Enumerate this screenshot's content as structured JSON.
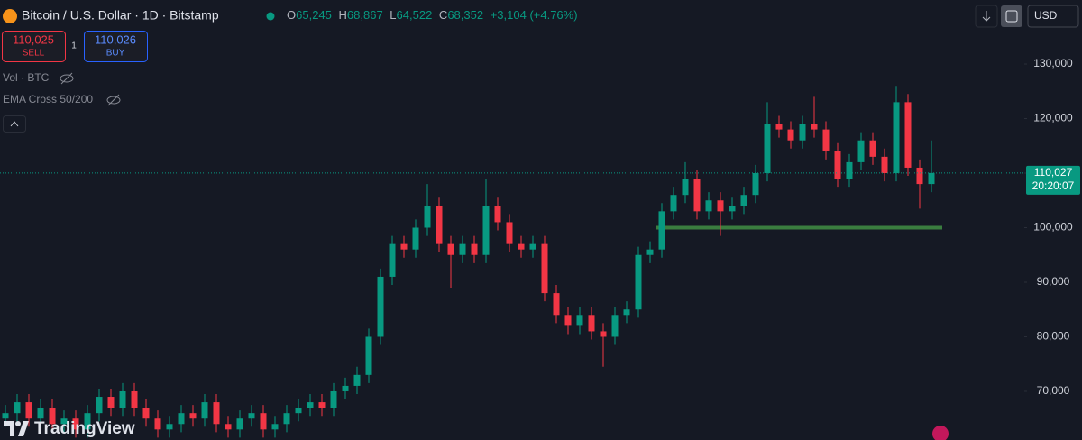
{
  "header": {
    "symbol": "Bitcoin / U.S. Dollar · 1D · Bitstamp",
    "ohlc": [
      {
        "key": "O",
        "value": "65,245"
      },
      {
        "key": "H",
        "value": "68,867"
      },
      {
        "key": "L",
        "value": "64,522"
      },
      {
        "key": "C",
        "value": "68,352"
      }
    ],
    "change": "+3,104 (+4.76%)",
    "currency": "USD"
  },
  "trade": {
    "sell_price": "110,025",
    "sell": "SELL",
    "spread": "1",
    "buy_price": "110,026",
    "buy": "BUY"
  },
  "indicators": [
    "Vol · BTC",
    "EMA Cross 50/200"
  ],
  "logo": "TradingView",
  "chart_data": {
    "type": "candlestick",
    "up_color": "#089981",
    "down_color": "#f23645",
    "ylim": [
      61070,
      141740
    ],
    "yticks": [
      {
        "value": 70000,
        "label": "70,000"
      },
      {
        "value": 80000,
        "label": "80,000"
      },
      {
        "value": 90000,
        "label": "90,000"
      },
      {
        "value": 100000,
        "label": "100,000"
      },
      {
        "value": 110000,
        "label": "110,000"
      },
      {
        "value": 120000,
        "label": "120,000"
      },
      {
        "value": 130000,
        "label": "130,000"
      }
    ],
    "open": [
      65000,
      66000,
      68000,
      65000,
      67000,
      64000,
      65000,
      63000,
      66000,
      69000,
      67000,
      70000,
      67000,
      65000,
      63000,
      64000,
      66000,
      65000,
      68000,
      64000,
      63000,
      65000,
      66000,
      63000,
      64000,
      66000,
      67000,
      68000,
      67000,
      70000,
      71000,
      73000,
      80000,
      91000,
      97000,
      96000,
      100000,
      104000,
      97000,
      95000,
      97000,
      95000,
      104000,
      101000,
      97000,
      96000,
      97000,
      88000,
      84000,
      82000,
      84000,
      81000,
      80000,
      84000,
      85000,
      95000,
      96000,
      103000,
      106000,
      109000,
      103000,
      105000,
      103000,
      104000,
      106000,
      110000,
      119000,
      118000,
      116000,
      119000,
      118000,
      114000,
      109000,
      112000,
      116000,
      113000,
      110000,
      123000,
      111000,
      108000
    ],
    "high": [
      67500,
      69500,
      69500,
      68500,
      68500,
      66500,
      66500,
      67500,
      70500,
      70500,
      71500,
      71500,
      68500,
      66500,
      65500,
      67500,
      67500,
      69500,
      69500,
      65500,
      66500,
      67500,
      67500,
      65500,
      67500,
      68500,
      69500,
      69500,
      71500,
      72500,
      74500,
      81500,
      92500,
      98500,
      98500,
      101500,
      108000,
      105500,
      98500,
      98500,
      98500,
      109000,
      105500,
      102500,
      98500,
      98500,
      98500,
      89500,
      85500,
      85500,
      85500,
      82500,
      85500,
      86500,
      96500,
      97500,
      104500,
      107500,
      112000,
      110500,
      106500,
      106500,
      105500,
      107500,
      111500,
      123000,
      120500,
      119500,
      120500,
      124000,
      119500,
      115500,
      113500,
      117500,
      117500,
      114500,
      126000,
      124500,
      112500,
      116000
    ],
    "low": [
      63500,
      64500,
      63500,
      63500,
      62500,
      62500,
      61500,
      61500,
      64500,
      65500,
      65500,
      65500,
      63500,
      61500,
      61500,
      62500,
      63500,
      63500,
      62500,
      61500,
      61500,
      63500,
      61500,
      61500,
      62500,
      64500,
      65500,
      65500,
      65500,
      68500,
      69500,
      71500,
      78500,
      89500,
      94500,
      94500,
      98500,
      95500,
      89000,
      93500,
      93500,
      93500,
      99500,
      95500,
      94500,
      94500,
      86500,
      82500,
      80500,
      80500,
      79500,
      74500,
      78500,
      82500,
      83500,
      93500,
      94500,
      101500,
      104500,
      101500,
      101500,
      98500,
      101500,
      102500,
      104500,
      108500,
      116500,
      114500,
      114500,
      116500,
      112500,
      107500,
      107500,
      110500,
      111500,
      108500,
      108500,
      109500,
      103500,
      106500
    ],
    "close": [
      66000,
      68000,
      65000,
      67000,
      64000,
      65000,
      63000,
      66000,
      69000,
      67000,
      70000,
      67000,
      65000,
      63000,
      64000,
      66000,
      65000,
      68000,
      64000,
      63000,
      65000,
      66000,
      63000,
      64000,
      66000,
      67000,
      68000,
      67000,
      70000,
      71000,
      73000,
      80000,
      91000,
      97000,
      96000,
      100000,
      104000,
      97000,
      95000,
      97000,
      95000,
      104000,
      101000,
      97000,
      96000,
      97000,
      88000,
      84000,
      82000,
      84000,
      81000,
      80000,
      84000,
      85000,
      95000,
      96000,
      103000,
      106000,
      109000,
      103000,
      105000,
      103000,
      104000,
      106000,
      110000,
      119000,
      118000,
      116000,
      119000,
      118000,
      114000,
      109000,
      112000,
      116000,
      113000,
      110000,
      123000,
      111000,
      108000,
      110027
    ],
    "last_price_label": "110,027",
    "countdown": "20:20:07",
    "support": {
      "value": 100000,
      "color": "#3a7d3f"
    }
  }
}
